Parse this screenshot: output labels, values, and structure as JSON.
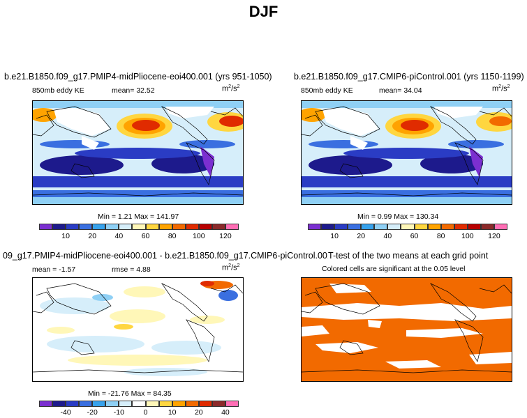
{
  "figure_title": "DJF",
  "panels": {
    "top_left": {
      "title": "b.e21.B1850.f09_g17.PMIP4-midPliocene-eoi400.001 (yrs 951-1050)",
      "field": "850mb eddy KE",
      "mean_text": "mean=   32.52",
      "units_base": "m",
      "units_exp1": "2",
      "units_exp2": "2",
      "minmax": "Min =    1.21  Max = 141.97"
    },
    "top_right": {
      "title": "b.e21.B1850.f09_g17.CMIP6-piControl.001 (yrs 1150-1199)",
      "field": "850mb eddy KE",
      "mean_text": "mean=   34.04",
      "units_base": "m",
      "units_exp1": "2",
      "units_exp2": "2",
      "minmax": "Min =    0.99  Max = 130.34"
    },
    "bottom_left": {
      "title": "09_g17.PMIP4-midPliocene-eoi400.001 - b.e21.B1850.f09_g17.CMIP6-piControl.001",
      "mean_text": "mean =   -1.57",
      "rmse_text": "rmse =    4.88",
      "units_base": "m",
      "units_exp1": "2",
      "units_exp2": "2",
      "minmax": "Min = -21.76  Max =  84.35"
    },
    "bottom_right": {
      "title": "T-test of the two means at each grid point",
      "subtitle": "Colored cells are significant at the 0.05 level"
    }
  },
  "colorbars": {
    "ke_ticks": [
      "10",
      "20",
      "40",
      "60",
      "80",
      "100",
      "120"
    ],
    "diff_ticks": [
      "-40",
      "-20",
      "-10",
      "0",
      "10",
      "20",
      "40"
    ],
    "ke_colors": [
      "#7b2fd0",
      "#1d1a8c",
      "#2a3cc4",
      "#3a6fe0",
      "#37a2ec",
      "#8fd0f5",
      "#d6eefa",
      "#fff7b8",
      "#ffd640",
      "#ffa300",
      "#f26a00",
      "#e02b00",
      "#b80000",
      "#8c2a2a",
      "#ff6eb4"
    ],
    "diff_colors": [
      "#7b2fd0",
      "#1d1a8c",
      "#2a3cc4",
      "#3a6fe0",
      "#37a2ec",
      "#8fd0f5",
      "#d6eefa",
      "#ffffff",
      "#fff7b8",
      "#ffd640",
      "#ffa300",
      "#f26a00",
      "#e02b00",
      "#8c2a2a",
      "#ff6eb4"
    ]
  }
}
